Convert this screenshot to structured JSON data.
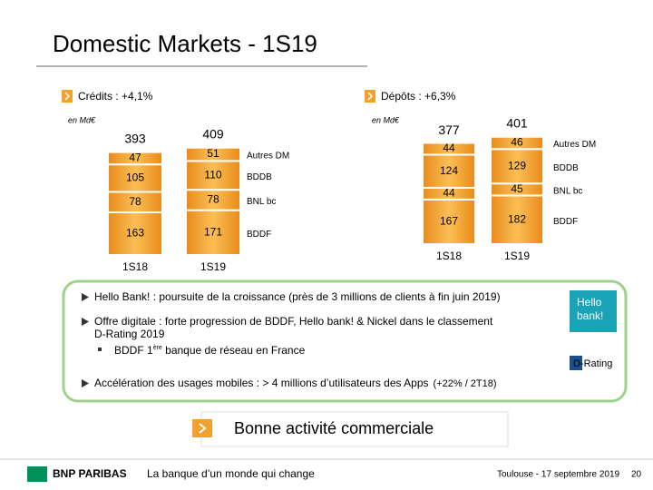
{
  "page": {
    "title": "Domestic Markets - 1S19",
    "bullets": [
      {
        "lines": [
          "Hello Bank! : poursuite de la croissance (près de 3 millions de clients à fin juin 2019)"
        ]
      },
      {
        "lines": [
          "Offre digitale : forte progression de BDDF, Hello bank! & Nickel dans le classement",
          "D-Rating 2019"
        ],
        "sub": [
          "BDDF 1",
          "ère",
          " banque de réseau en France"
        ]
      },
      {
        "lines": [
          "Accélération des usages mobiles : > 4 millions d’utilisateurs des Apps"
        ],
        "note": "(+22% / 2T18)"
      }
    ],
    "logos": {
      "hello": [
        "Hello",
        "bank!"
      ],
      "drating": "D-Rating"
    },
    "banner": "Bonne activité commerciale",
    "footer": {
      "brand": "BNP PARIBAS",
      "tagline": "La banque d’un monde qui change",
      "place": "Toulouse - 17 septembre 2019",
      "page": "20"
    }
  },
  "chart_data": [
    {
      "type": "bar",
      "stacked": true,
      "title": "Crédits : +4,1%",
      "unit": "en Md€",
      "categories": [
        "1S18",
        "1S19"
      ],
      "series": [
        {
          "name": "BDDF",
          "color": "#f2a12e",
          "values": [
            163,
            171
          ]
        },
        {
          "name": "BNL bc",
          "color": "#f2a12e",
          "values": [
            78,
            78
          ]
        },
        {
          "name": "BDDB",
          "color": "#f2a12e",
          "values": [
            105,
            110
          ]
        },
        {
          "name": "Autres DM",
          "color": "#f2a12e",
          "values": [
            47,
            51
          ]
        }
      ],
      "totals": [
        393,
        409
      ]
    },
    {
      "type": "bar",
      "stacked": true,
      "title": "Dépôts : +6,3%",
      "unit": "en Md€",
      "categories": [
        "1S18",
        "1S19"
      ],
      "series": [
        {
          "name": "BDDF",
          "color": "#f2a12e",
          "values": [
            167,
            182
          ]
        },
        {
          "name": "BNL bc",
          "color": "#f2a12e",
          "values": [
            44,
            45
          ]
        },
        {
          "name": "BDDB",
          "color": "#f2a12e",
          "values": [
            124,
            129
          ]
        },
        {
          "name": "Autres DM",
          "color": "#f2a12e",
          "values": [
            44,
            46
          ]
        }
      ],
      "totals": [
        377,
        401
      ]
    }
  ]
}
